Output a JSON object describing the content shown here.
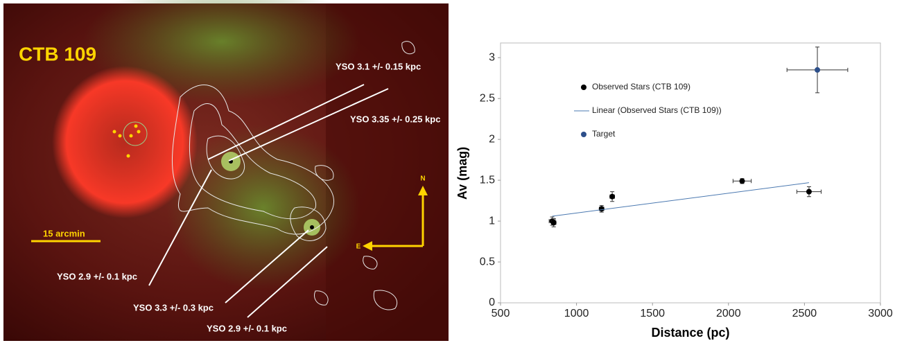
{
  "image": {
    "label": "CTB 109",
    "annotations": [
      "YSO 3.1 +/- 0.15 kpc",
      "YSO 3.35 +/- 0.25 kpc",
      "YSO 2.9 +/- 0.1 kpc",
      "YSO 3.3 +/- 0.3 kpc",
      "YSO 2.9 +/- 0.1 kpc"
    ],
    "scale_bar": "15 arcmin",
    "compass": {
      "north": "N",
      "east": "E"
    }
  },
  "chart_data": {
    "type": "scatter",
    "x_label": "Distance (pc)",
    "y_label": "Av (mag)",
    "xlim": [
      500,
      3000
    ],
    "xticks": [
      500,
      1000,
      1500,
      2000,
      2500,
      3000
    ],
    "ylim": [
      0,
      3.18
    ],
    "yticks": [
      0,
      0.5,
      1,
      1.5,
      2,
      2.5,
      3
    ],
    "series": [
      {
        "name": "Observed Stars (CTB 109)",
        "color": "#000000",
        "type": "scatter",
        "x": [
          840,
          850,
          1165,
          1235,
          2090,
          2530
        ],
        "values": [
          1.0,
          0.98,
          1.15,
          1.3,
          1.49,
          1.36
        ],
        "xerr": [
          20,
          15,
          15,
          15,
          60,
          80
        ],
        "yerr": [
          0.05,
          0.05,
          0.04,
          0.06,
          0.03,
          0.06
        ]
      },
      {
        "name": "Linear (Observed Stars (CTB 109))",
        "color": "#4a78b0",
        "type": "line",
        "x": [
          840,
          2530
        ],
        "values": [
          1.06,
          1.47
        ]
      },
      {
        "name": "Target",
        "color": "#2d4f8a",
        "type": "scatter",
        "x": [
          2585
        ],
        "values": [
          2.85
        ],
        "xerr": [
          200
        ],
        "yerr": [
          0.28
        ]
      }
    ]
  }
}
